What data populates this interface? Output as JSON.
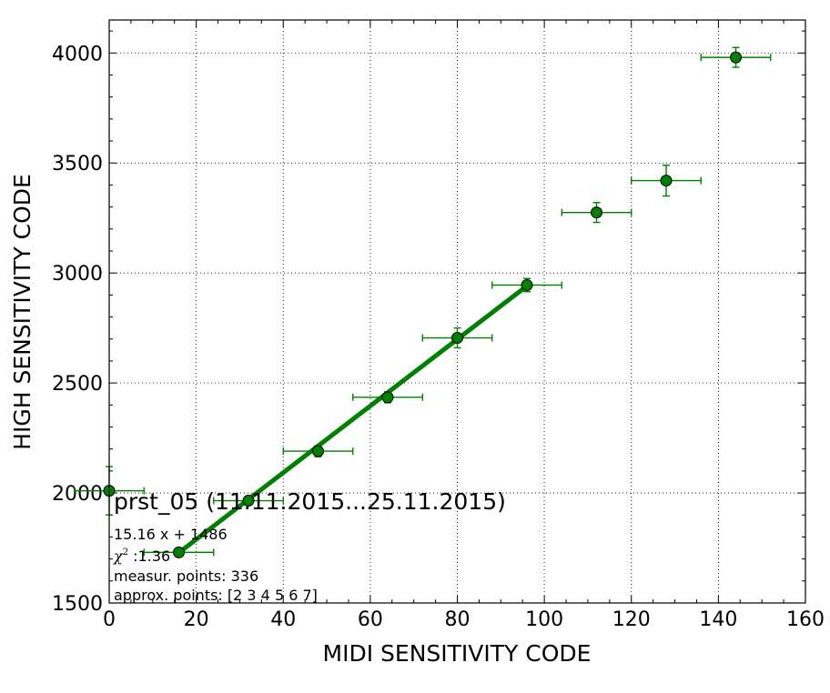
{
  "chart_data": {
    "type": "scatter",
    "xlabel": "MIDI SENSITIVITY CODE",
    "ylabel": "HIGH SENSITIVITY CODE",
    "xlim": [
      0,
      160
    ],
    "ylim": [
      1500,
      4150
    ],
    "x_ticks": [
      0,
      20,
      40,
      60,
      80,
      100,
      120,
      140,
      160
    ],
    "y_ticks": [
      1500,
      2000,
      2500,
      3000,
      3500,
      4000
    ],
    "grid": true,
    "grid_style": "dotted",
    "marker_color": "#008000",
    "line_color": "#008000",
    "points": [
      {
        "x": 0,
        "y": 2010,
        "xerr": 8,
        "yerr": 110
      },
      {
        "x": 16,
        "y": 1730,
        "xerr": 8,
        "yerr": 10
      },
      {
        "x": 32,
        "y": 1965,
        "xerr": 8,
        "yerr": 10
      },
      {
        "x": 48,
        "y": 2190,
        "xerr": 8,
        "yerr": 25
      },
      {
        "x": 64,
        "y": 2435,
        "xerr": 8,
        "yerr": 25
      },
      {
        "x": 80,
        "y": 2705,
        "xerr": 8,
        "yerr": 45
      },
      {
        "x": 96,
        "y": 2945,
        "xerr": 8,
        "yerr": 30
      },
      {
        "x": 112,
        "y": 3275,
        "xerr": 8,
        "yerr": 45
      },
      {
        "x": 128,
        "y": 3420,
        "xerr": 8,
        "yerr": 70
      },
      {
        "x": 144,
        "y": 3980,
        "xerr": 8,
        "yerr": 45
      }
    ],
    "fit": {
      "slope": 15.16,
      "intercept": 1486,
      "x_start": 16,
      "x_end": 96
    },
    "annotations": {
      "title": "prst_05 (11.11.2015...25.11.2015)",
      "equation": "15.16 x + 1486",
      "chi_symbol": "χ",
      "chi_power": "2",
      "chi_value": " :1.36",
      "measur_points": "measur. points: 336",
      "approx_points": "approx. points: [2 3 4 5 6 7]"
    }
  }
}
